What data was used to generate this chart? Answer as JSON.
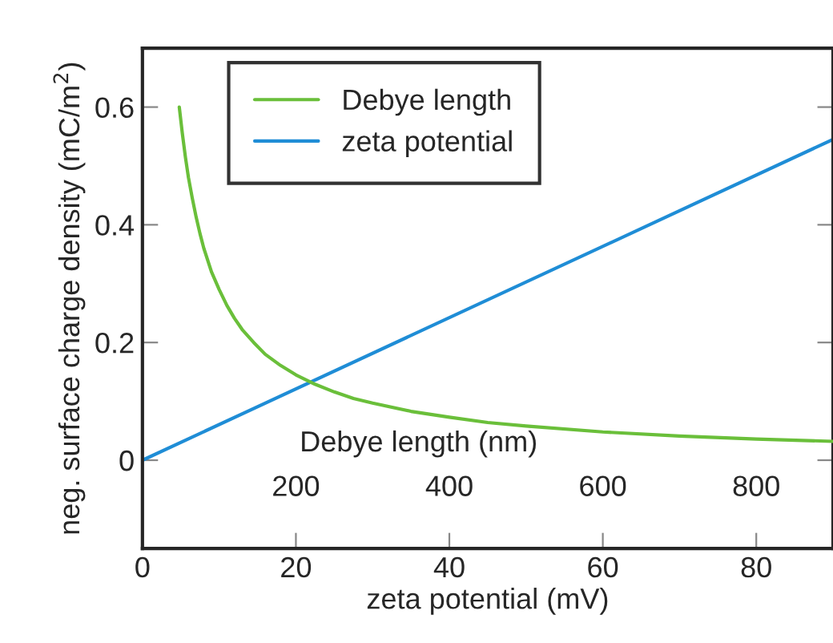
{
  "chart_data": {
    "type": "line",
    "xlabel": "zeta potential (mV)",
    "ylabel": "neg. surface charge density (mC/m$^{2}$)",
    "x2label": "Debye length (nm)",
    "xlim": [
      0,
      90
    ],
    "xticks": [
      0,
      20,
      40,
      60,
      80
    ],
    "x2lim": [
      0,
      900
    ],
    "x2ticks": [
      200,
      400,
      600,
      800
    ],
    "ylim": [
      -0.15,
      0.7
    ],
    "yticks": [
      0,
      0.2,
      0.4,
      0.6
    ],
    "grid": false,
    "legend": "top",
    "series": [
      {
        "name": "Debye length",
        "color": "#6abf3a",
        "axis": "x2",
        "x": [
          48,
          52,
          56,
          60,
          65,
          70,
          75,
          80,
          90,
          100,
          110,
          120,
          130,
          145,
          160,
          180,
          200,
          225,
          250,
          275,
          300,
          350,
          400,
          450,
          500,
          600,
          700,
          800,
          900
        ],
        "values": [
          0.6,
          0.555,
          0.515,
          0.48,
          0.445,
          0.413,
          0.385,
          0.36,
          0.32,
          0.29,
          0.263,
          0.241,
          0.222,
          0.2,
          0.18,
          0.161,
          0.145,
          0.129,
          0.116,
          0.105,
          0.097,
          0.083,
          0.073,
          0.064,
          0.058,
          0.048,
          0.041,
          0.036,
          0.032
        ]
      },
      {
        "name": "zeta potential",
        "color": "#1f8dd6",
        "x": [
          0,
          90
        ],
        "values": [
          0,
          0.545
        ]
      }
    ]
  }
}
